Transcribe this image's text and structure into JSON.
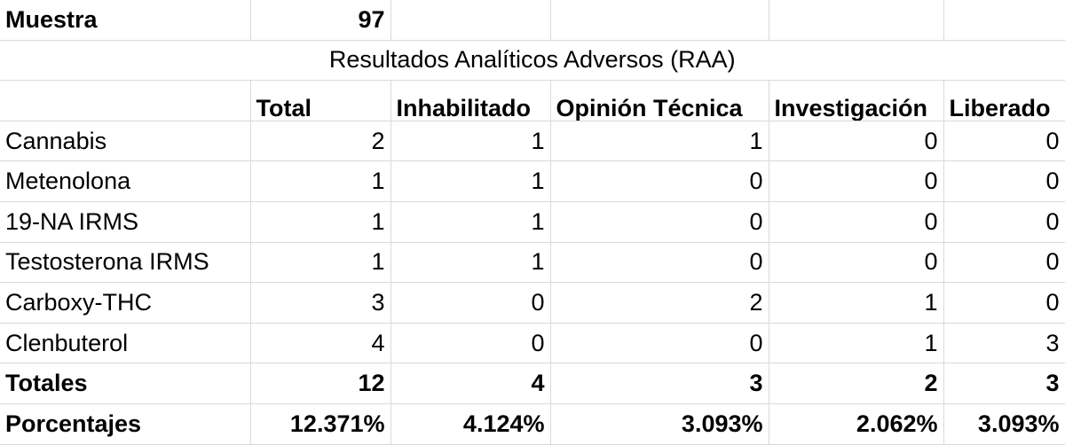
{
  "sample": {
    "label": "Muestra",
    "value": "97"
  },
  "title": "Resultados Analíticos Adversos (RAA)",
  "columns": [
    "Total",
    "Inhabilitado",
    "Opinión Técnica",
    "Investigación",
    "Liberado"
  ],
  "rows": [
    {
      "name": "Cannabis",
      "values": [
        "2",
        "1",
        "1",
        "0",
        "0"
      ]
    },
    {
      "name": "Metenolona",
      "values": [
        "1",
        "1",
        "0",
        "0",
        "0"
      ]
    },
    {
      "name": "19-NA IRMS",
      "values": [
        "1",
        "1",
        "0",
        "0",
        "0"
      ]
    },
    {
      "name": "Testosterona IRMS",
      "values": [
        "1",
        "1",
        "0",
        "0",
        "0"
      ]
    },
    {
      "name": "Carboxy-THC",
      "values": [
        "3",
        "0",
        "2",
        "1",
        "0"
      ]
    },
    {
      "name": "Clenbuterol",
      "values": [
        "4",
        "0",
        "0",
        "1",
        "3"
      ]
    }
  ],
  "totals": {
    "label": "Totales",
    "values": [
      "12",
      "4",
      "3",
      "2",
      "3"
    ]
  },
  "percentages": {
    "label": "Porcentajes",
    "values": [
      "12.371%",
      "4.124%",
      "3.093%",
      "2.062%",
      "3.093%"
    ]
  }
}
